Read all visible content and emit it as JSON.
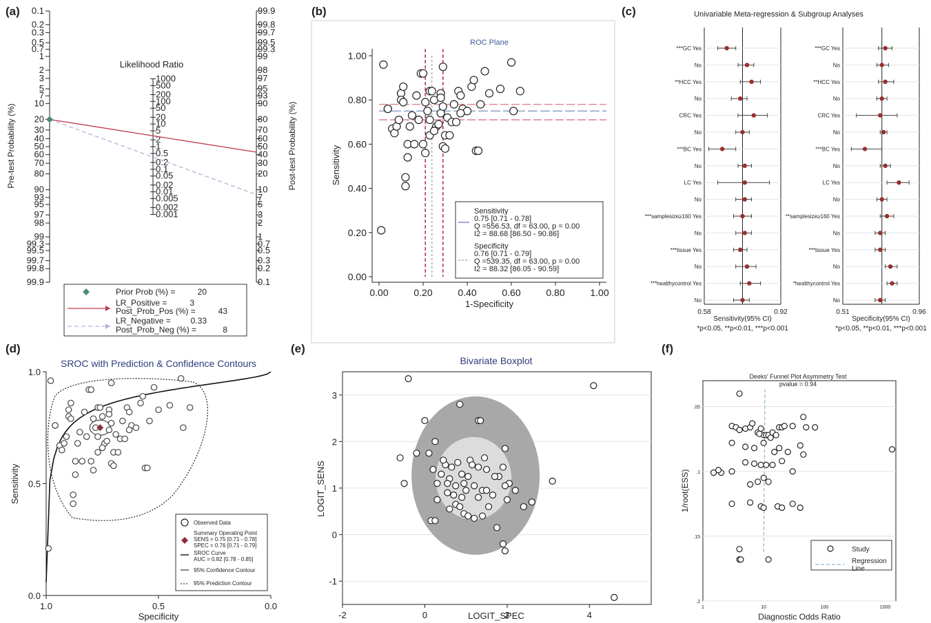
{
  "chart_data": [
    {
      "id": "a",
      "panel_label": "(a)",
      "type": "fagan-nomogram",
      "title": "Likelihood Ratio",
      "left_axis_label": "Pre-test Probability (%)",
      "right_axis_label": "Post-test Probability (%)",
      "prob_ticks": [
        "0.1",
        "0.2",
        "0.3",
        "0.5",
        "0.7",
        "1",
        "2",
        "3",
        "5",
        "7",
        "10",
        "20",
        "30",
        "40",
        "50",
        "60",
        "70",
        "80",
        "90",
        "93",
        "95",
        "97",
        "98",
        "99",
        "99.3",
        "99.5",
        "99.7",
        "99.8",
        "99.9"
      ],
      "lr_ticks": [
        "1000",
        "500",
        "200",
        "100",
        "50",
        "20",
        "10",
        "5",
        "2",
        "1",
        "0.5",
        "0.2",
        "0.1",
        "0.05",
        "0.02",
        "0.01",
        "0.005",
        "0.002",
        "0.001"
      ],
      "prior_prob": 20,
      "lr_positive": 3,
      "post_prob_pos": 43,
      "lr_negative": 0.33,
      "post_prob_neg": 8,
      "legend": {
        "prior": "Prior Prob (%) =",
        "prior_val": "20",
        "lrp": "LR_Positive =",
        "lrp_val": "3",
        "ppp": "Post_Prob_Pos (%) =",
        "ppp_val": "43",
        "lrn": "LR_Negative =",
        "lrn_val": "0.33",
        "ppn": "Post_Prob_Neg (%) =",
        "ppn_val": "8"
      },
      "colors": {
        "positive": "#c0394b",
        "negative": "#b2b2dd",
        "prior": "#4d8b76"
      }
    },
    {
      "id": "b",
      "panel_label": "(b)",
      "type": "scatter",
      "title": "ROC Plane",
      "xlabel": "1-Specificity",
      "ylabel": "Sensitivity",
      "xlim": [
        0,
        1
      ],
      "ylim": [
        0,
        1
      ],
      "xticks": [
        "0.00",
        "0.20",
        "0.40",
        "0.60",
        "0.80",
        "1.00"
      ],
      "yticks": [
        "0.00",
        "0.20",
        "0.40",
        "0.60",
        "0.80",
        "1.00"
      ],
      "points": [
        [
          0.01,
          0.21
        ],
        [
          0.02,
          0.96
        ],
        [
          0.04,
          0.76
        ],
        [
          0.06,
          0.67
        ],
        [
          0.07,
          0.65
        ],
        [
          0.08,
          0.68
        ],
        [
          0.09,
          0.71
        ],
        [
          0.1,
          0.83
        ],
        [
          0.1,
          0.8
        ],
        [
          0.11,
          0.86
        ],
        [
          0.11,
          0.79
        ],
        [
          0.12,
          0.45
        ],
        [
          0.12,
          0.41
        ],
        [
          0.13,
          0.6
        ],
        [
          0.13,
          0.54
        ],
        [
          0.14,
          0.68
        ],
        [
          0.15,
          0.73
        ],
        [
          0.17,
          0.82
        ],
        [
          0.18,
          0.71
        ],
        [
          0.19,
          0.92
        ],
        [
          0.2,
          0.92
        ],
        [
          0.2,
          0.6
        ],
        [
          0.21,
          0.79
        ],
        [
          0.21,
          0.56
        ],
        [
          0.22,
          0.75
        ],
        [
          0.23,
          0.84
        ],
        [
          0.23,
          0.64
        ],
        [
          0.24,
          0.84
        ],
        [
          0.25,
          0.8
        ],
        [
          0.26,
          0.68
        ],
        [
          0.27,
          0.69
        ],
        [
          0.28,
          0.83
        ],
        [
          0.28,
          0.81
        ],
        [
          0.28,
          0.74
        ],
        [
          0.29,
          0.95
        ],
        [
          0.29,
          0.77
        ],
        [
          0.29,
          0.59
        ],
        [
          0.3,
          0.64
        ],
        [
          0.31,
          0.72
        ],
        [
          0.33,
          0.7
        ],
        [
          0.34,
          0.78
        ],
        [
          0.35,
          0.7
        ],
        [
          0.36,
          0.84
        ],
        [
          0.37,
          0.82
        ],
        [
          0.38,
          0.76
        ],
        [
          0.4,
          0.75
        ],
        [
          0.42,
          0.86
        ],
        [
          0.43,
          0.89
        ],
        [
          0.44,
          0.57
        ],
        [
          0.45,
          0.57
        ],
        [
          0.46,
          0.78
        ],
        [
          0.48,
          0.93
        ],
        [
          0.55,
          0.85
        ],
        [
          0.6,
          0.97
        ],
        [
          0.61,
          0.75
        ],
        [
          0.64,
          0.84
        ],
        [
          0.04,
          0.76
        ],
        [
          0.16,
          0.6
        ],
        [
          0.23,
          0.71
        ],
        [
          0.25,
          0.66
        ],
        [
          0.32,
          0.64
        ],
        [
          0.37,
          0.74
        ],
        [
          0.5,
          0.83
        ],
        [
          0.3,
          0.58
        ]
      ],
      "summary_sens": 0.75,
      "sens_ci": [
        0.71,
        0.78
      ],
      "summary_spec": 0.76,
      "spec_ci": [
        0.71,
        0.79
      ],
      "legend_text": {
        "sens_title": "Sensitivity",
        "sens_line1": " 0.75 [0.71 - 0.78]",
        "sens_line2": "Q =556.53, df = 63.00, p =  0.00",
        "sens_line3": "I2 = 88.68 [86.50 - 90.86]",
        "spec_title": "Specificity",
        "spec_line1": " 0.76 [0.71 - 0.79]",
        "spec_line2": "Q =539.35, df = 63.00, p =  0.00",
        "spec_line3": "I2 = 88.32 [86.05 - 90.59]"
      }
    },
    {
      "id": "c",
      "panel_label": "(c)",
      "type": "forest",
      "title": "Univariable Meta-regression & Subgroup Analyses",
      "rows": [
        "***GC Yes",
        "No",
        "**HCC Yes",
        "No",
        "CRC Yes",
        "No",
        "***BC Yes",
        "No",
        "LC Yes",
        "No",
        "***samplesize≥160 Yes",
        "No",
        "***tissue Yes",
        "No",
        "***healthycontrol Yes",
        "No"
      ],
      "rows_spec": [
        "***GC Yes",
        "No",
        "**HCC Yes",
        "No",
        "CRC Yes",
        "No",
        "***BC Yes",
        "No",
        "LC Yes",
        "No",
        "**samplesize≥160 Yes",
        "No",
        "***tissue Yes",
        "No",
        "*healthycontrol Yes",
        "No"
      ],
      "sens": {
        "xlabel": "Sensitivity(95% CI)",
        "xticks": [
          "0.58",
          "0.92"
        ],
        "xlim": [
          0.58,
          0.92
        ],
        "ref": 0.75,
        "est": [
          0.68,
          0.77,
          0.79,
          0.74,
          0.8,
          0.75,
          0.66,
          0.76,
          0.76,
          0.76,
          0.75,
          0.76,
          0.74,
          0.77,
          0.78,
          0.75
        ],
        "lo": [
          0.64,
          0.73,
          0.74,
          0.7,
          0.73,
          0.72,
          0.6,
          0.73,
          0.64,
          0.72,
          0.71,
          0.72,
          0.71,
          0.72,
          0.74,
          0.71
        ],
        "hi": [
          0.72,
          0.8,
          0.83,
          0.77,
          0.86,
          0.78,
          0.72,
          0.79,
          0.87,
          0.79,
          0.79,
          0.79,
          0.77,
          0.81,
          0.83,
          0.78
        ]
      },
      "spec": {
        "xlabel": "Specificity(95% CI)",
        "xticks": [
          "0.51",
          "0.96"
        ],
        "xlim": [
          0.51,
          0.96
        ],
        "ref": 0.74,
        "est": [
          0.76,
          0.74,
          0.76,
          0.74,
          0.73,
          0.75,
          0.64,
          0.76,
          0.84,
          0.74,
          0.77,
          0.73,
          0.73,
          0.79,
          0.8,
          0.73
        ],
        "lo": [
          0.72,
          0.71,
          0.72,
          0.71,
          0.59,
          0.73,
          0.56,
          0.73,
          0.77,
          0.71,
          0.73,
          0.7,
          0.7,
          0.76,
          0.77,
          0.7
        ],
        "hi": [
          0.8,
          0.78,
          0.81,
          0.77,
          0.83,
          0.77,
          0.74,
          0.79,
          0.9,
          0.77,
          0.81,
          0.76,
          0.76,
          0.83,
          0.83,
          0.76
        ]
      },
      "footnote": "*p<0.05, **p<0.01, ***p<0.001"
    },
    {
      "id": "d",
      "panel_label": "(d)",
      "type": "sroc",
      "title": "SROC with Prediction & Confidence Contours",
      "xlabel": "Specificity",
      "ylabel": "Sensitivity",
      "xlim": [
        1.0,
        0.0
      ],
      "ylim": [
        0.0,
        1.0
      ],
      "xticks": [
        "1.0",
        "0.5",
        "0.0"
      ],
      "yticks": [
        "0.0",
        "0.5",
        "1.0"
      ],
      "summary_point": [
        0.76,
        0.75
      ],
      "auc": 0.82,
      "auc_ci": [
        0.78,
        0.85
      ],
      "legend": {
        "observed": "Observed Data",
        "summary": "Summary Operating Point",
        "sens": "SENS = 0.75 [0.71 - 0.78]",
        "spec": "SPEC = 0.76 [0.71 - 0.79]",
        "sroc": "SROC Curve",
        "auc": "AUC = 0.82 [0.78 - 0.85]",
        "conf": "95% Confidence Contour",
        "pred": "95% Prediction Contour"
      }
    },
    {
      "id": "e",
      "panel_label": "(e)",
      "type": "scatter",
      "title": "Bivariate Boxplot",
      "xlabel": "LOGIT_SPEC",
      "ylabel": "LOGIT_SENS",
      "xlim": [
        -2,
        5.5
      ],
      "ylim": [
        -1.5,
        3.5
      ],
      "xticks": [
        "-2",
        "0",
        "2",
        "4"
      ],
      "yticks": [
        "-1",
        "0",
        "1",
        "2",
        "3"
      ],
      "points": [
        [
          -0.4,
          3.35
        ],
        [
          4.1,
          3.2
        ],
        [
          4.6,
          -1.35
        ],
        [
          -0.6,
          1.65
        ],
        [
          -0.5,
          1.1
        ],
        [
          -0.2,
          1.75
        ],
        [
          0,
          2.45
        ],
        [
          0.1,
          1.75
        ],
        [
          0.25,
          2
        ],
        [
          0.2,
          1.4
        ],
        [
          0.3,
          1.1
        ],
        [
          0.5,
          1.5
        ],
        [
          0.55,
          0.9
        ],
        [
          0.6,
          1.2
        ],
        [
          0.7,
          0.85
        ],
        [
          0.8,
          1.55
        ],
        [
          0.9,
          0.8
        ],
        [
          0.9,
          1.3
        ],
        [
          1,
          0.95
        ],
        [
          1.1,
          1.6
        ],
        [
          1.2,
          1.05
        ],
        [
          1.3,
          1.45
        ],
        [
          1.3,
          0.8
        ],
        [
          1.4,
          0.95
        ],
        [
          1.5,
          1.4
        ],
        [
          1.5,
          0.95
        ],
        [
          1.55,
          0.6
        ],
        [
          0.6,
          0.55
        ],
        [
          0.75,
          0.65
        ],
        [
          0.85,
          0.6
        ],
        [
          0.95,
          1.1
        ],
        [
          1.05,
          1.25
        ],
        [
          1.15,
          1.5
        ],
        [
          1.3,
          2.45
        ],
        [
          1.35,
          2.45
        ],
        [
          0.85,
          2.8
        ],
        [
          1.8,
          1.25
        ],
        [
          1.9,
          1.45
        ],
        [
          1.95,
          1.85
        ],
        [
          2,
          0.75
        ],
        [
          2.05,
          1.1
        ],
        [
          1.95,
          1.05
        ],
        [
          2.2,
          0.95
        ],
        [
          2.4,
          0.6
        ],
        [
          2.6,
          0.7
        ],
        [
          3.1,
          1.15
        ],
        [
          1.4,
          0.4
        ],
        [
          1.2,
          0.35
        ],
        [
          1.75,
          0.15
        ],
        [
          1.9,
          -0.2
        ],
        [
          1.95,
          -0.35
        ],
        [
          0.15,
          0.3
        ],
        [
          0.25,
          0.3
        ],
        [
          0.95,
          0.45
        ],
        [
          1.05,
          0.4
        ],
        [
          0.45,
          1.6
        ],
        [
          0.65,
          1.45
        ],
        [
          0.55,
          1.1
        ],
        [
          1.45,
          1.65
        ],
        [
          0.3,
          0.75
        ],
        [
          1.65,
          0.85
        ],
        [
          0.4,
          1.3
        ],
        [
          1.7,
          1.25
        ],
        [
          0.75,
          1.05
        ]
      ],
      "median": [
        1.15,
        1.15
      ]
    },
    {
      "id": "f",
      "panel_label": "(f)",
      "type": "scatter",
      "title": "Deeks' Funnel Plot Asymmetry Test",
      "subtitle": "pvalue  =  0.94",
      "xlabel": "Diagnostic Odds Ratio",
      "ylabel": "1/root(ESS)",
      "xscale": "log",
      "xlim": [
        1,
        1500
      ],
      "ylim": [
        0.2,
        0.03
      ],
      "xticks": [
        "1",
        "10",
        "100",
        "1000"
      ],
      "yticks": [
        ".05",
        ".1",
        ".15",
        ".2"
      ],
      "points": [
        [
          4,
          0.04
        ],
        [
          3,
          0.065
        ],
        [
          3.5,
          0.066
        ],
        [
          4,
          0.068
        ],
        [
          5,
          0.067
        ],
        [
          6,
          0.066
        ],
        [
          6.5,
          0.063
        ],
        [
          8,
          0.07
        ],
        [
          9,
          0.067
        ],
        [
          10,
          0.072
        ],
        [
          11,
          0.072
        ],
        [
          12,
          0.072
        ],
        [
          13,
          0.074
        ],
        [
          14,
          0.07
        ],
        [
          16,
          0.072
        ],
        [
          18,
          0.066
        ],
        [
          20,
          0.066
        ],
        [
          22,
          0.065
        ],
        [
          30,
          0.065
        ],
        [
          45,
          0.058
        ],
        [
          50,
          0.066
        ],
        [
          70,
          0.066
        ],
        [
          3,
          0.078
        ],
        [
          5,
          0.081
        ],
        [
          7,
          0.082
        ],
        [
          10,
          0.078
        ],
        [
          15,
          0.085
        ],
        [
          25,
          0.085
        ],
        [
          40,
          0.08
        ],
        [
          45,
          0.087
        ],
        [
          2,
          0.101
        ],
        [
          3,
          0.1
        ],
        [
          1.5,
          0.101
        ],
        [
          1.8,
          0.099
        ],
        [
          5,
          0.093
        ],
        [
          7,
          0.094
        ],
        [
          9,
          0.095
        ],
        [
          11,
          0.095
        ],
        [
          14,
          0.095
        ],
        [
          20,
          0.092
        ],
        [
          30,
          0.1
        ],
        [
          6,
          0.11
        ],
        [
          8,
          0.108
        ],
        [
          10,
          0.105
        ],
        [
          12,
          0.108
        ],
        [
          3,
          0.125
        ],
        [
          6,
          0.124
        ],
        [
          9,
          0.127
        ],
        [
          10,
          0.128
        ],
        [
          17,
          0.127
        ],
        [
          20,
          0.128
        ],
        [
          30,
          0.125
        ],
        [
          40,
          0.128
        ],
        [
          4,
          0.16
        ],
        [
          4,
          0.168
        ],
        [
          4.2,
          0.168
        ],
        [
          12,
          0.168
        ],
        [
          1300,
          0.083
        ],
        [
          18,
          0.082
        ],
        [
          8.5,
          0.071
        ]
      ],
      "legend": {
        "study": "Study",
        "regression": "Regression",
        "regression2": "Line"
      }
    }
  ]
}
